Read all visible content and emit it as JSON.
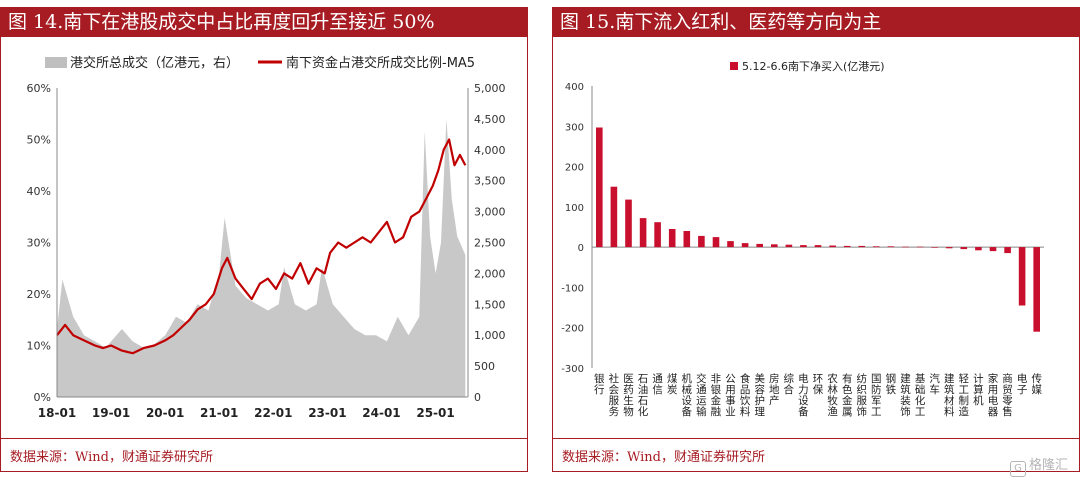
{
  "left": {
    "title": "图 14.南下在港股成交中占比再度回升至接近 50%",
    "source": "数据来源：Wind，财通证券研究所",
    "chart_data": {
      "type": "line",
      "legend": [
        {
          "name": "港交所总成交（亿港元，右）",
          "color": "#bfbfbf",
          "kind": "area"
        },
        {
          "name": "南下资金占港交所成交比例-MA5",
          "color": "#c00000",
          "kind": "line"
        }
      ],
      "x_ticks": [
        "18-01",
        "19-01",
        "20-01",
        "21-01",
        "22-01",
        "23-01",
        "24-01",
        "25-01"
      ],
      "y_left_ticks": [
        "0%",
        "10%",
        "20%",
        "30%",
        "40%",
        "50%",
        "60%"
      ],
      "y_left_range": [
        0,
        60
      ],
      "y_right_ticks": [
        "0",
        "500",
        "1,000",
        "1,500",
        "2,000",
        "2,500",
        "3,000",
        "3,500",
        "4,000",
        "4,500",
        "5,000"
      ],
      "y_right_range": [
        0,
        5000
      ],
      "x_range_years": [
        2018.0,
        2025.6
      ],
      "ratio_series": [
        [
          2018.0,
          12
        ],
        [
          2018.15,
          14
        ],
        [
          2018.3,
          12
        ],
        [
          2018.5,
          11
        ],
        [
          2018.7,
          10
        ],
        [
          2018.85,
          9.5
        ],
        [
          2019.0,
          10
        ],
        [
          2019.2,
          9
        ],
        [
          2019.4,
          8.5
        ],
        [
          2019.6,
          9.5
        ],
        [
          2019.8,
          10
        ],
        [
          2020.0,
          11
        ],
        [
          2020.15,
          12
        ],
        [
          2020.3,
          13.5
        ],
        [
          2020.45,
          15
        ],
        [
          2020.6,
          17
        ],
        [
          2020.75,
          18
        ],
        [
          2020.9,
          20
        ],
        [
          2021.05,
          25
        ],
        [
          2021.15,
          27
        ],
        [
          2021.3,
          23
        ],
        [
          2021.45,
          21
        ],
        [
          2021.6,
          19
        ],
        [
          2021.75,
          22
        ],
        [
          2021.9,
          23
        ],
        [
          2022.05,
          21
        ],
        [
          2022.2,
          24
        ],
        [
          2022.35,
          23
        ],
        [
          2022.5,
          26
        ],
        [
          2022.65,
          22
        ],
        [
          2022.8,
          25
        ],
        [
          2022.95,
          24
        ],
        [
          2023.05,
          28
        ],
        [
          2023.2,
          30
        ],
        [
          2023.35,
          29
        ],
        [
          2023.5,
          30
        ],
        [
          2023.65,
          31
        ],
        [
          2023.8,
          30
        ],
        [
          2023.95,
          32
        ],
        [
          2024.1,
          34
        ],
        [
          2024.25,
          30
        ],
        [
          2024.4,
          31
        ],
        [
          2024.55,
          35
        ],
        [
          2024.7,
          36
        ],
        [
          2024.85,
          39
        ],
        [
          2024.95,
          41
        ],
        [
          2025.05,
          44
        ],
        [
          2025.15,
          48
        ],
        [
          2025.25,
          50
        ],
        [
          2025.35,
          45
        ],
        [
          2025.45,
          47
        ],
        [
          2025.55,
          45
        ]
      ],
      "turnover_series": [
        [
          2018.0,
          1100
        ],
        [
          2018.1,
          1900
        ],
        [
          2018.3,
          1300
        ],
        [
          2018.5,
          1000
        ],
        [
          2018.7,
          900
        ],
        [
          2018.9,
          800
        ],
        [
          2019.0,
          900
        ],
        [
          2019.2,
          1100
        ],
        [
          2019.4,
          900
        ],
        [
          2019.6,
          800
        ],
        [
          2019.8,
          850
        ],
        [
          2020.0,
          1000
        ],
        [
          2020.2,
          1300
        ],
        [
          2020.4,
          1200
        ],
        [
          2020.6,
          1500
        ],
        [
          2020.8,
          1400
        ],
        [
          2021.0,
          2000
        ],
        [
          2021.1,
          2900
        ],
        [
          2021.3,
          1800
        ],
        [
          2021.5,
          1600
        ],
        [
          2021.7,
          1500
        ],
        [
          2021.9,
          1400
        ],
        [
          2022.1,
          1500
        ],
        [
          2022.2,
          2100
        ],
        [
          2022.4,
          1500
        ],
        [
          2022.6,
          1400
        ],
        [
          2022.8,
          1500
        ],
        [
          2022.9,
          2100
        ],
        [
          2023.1,
          1500
        ],
        [
          2023.3,
          1300
        ],
        [
          2023.5,
          1100
        ],
        [
          2023.7,
          1000
        ],
        [
          2023.9,
          1000
        ],
        [
          2024.1,
          900
        ],
        [
          2024.3,
          1300
        ],
        [
          2024.5,
          1000
        ],
        [
          2024.7,
          1300
        ],
        [
          2024.8,
          4300
        ],
        [
          2024.9,
          2600
        ],
        [
          2025.0,
          2000
        ],
        [
          2025.1,
          2500
        ],
        [
          2025.2,
          4500
        ],
        [
          2025.3,
          3200
        ],
        [
          2025.4,
          2600
        ],
        [
          2025.5,
          2400
        ],
        [
          2025.55,
          2300
        ]
      ]
    }
  },
  "right": {
    "title": "图 15.南下流入红利、医药等方向为主",
    "source": "数据来源：Wind，财通证券研究所",
    "chart_data": {
      "type": "bar",
      "legend": "5.12-6.6南下净买入(亿港元)",
      "bar_color": "#c8102e",
      "y_ticks": [
        "400",
        "300",
        "200",
        "100",
        "0",
        "-100",
        "-200",
        "-300"
      ],
      "ylim": [
        -300,
        400
      ],
      "categories": [
        "银行",
        "社会服务",
        "医药生物",
        "石油石化",
        "通信",
        "煤炭",
        "机械设备",
        "交通运输",
        "非银金融",
        "公用事业",
        "食品饮料",
        "美容护理",
        "房地产",
        "综合",
        "电力设备",
        "环保",
        "农林牧渔",
        "有色金属",
        "纺织服饰",
        "国防军工",
        "钢铁",
        "建筑装饰",
        "基础化工",
        "汽车",
        "建筑材料",
        "轻工制造",
        "计算机",
        "家用电器",
        "商贸零售",
        "电子",
        "传媒"
      ],
      "values": [
        297,
        150,
        118,
        72,
        62,
        45,
        40,
        28,
        25,
        15,
        10,
        8,
        7,
        6,
        5,
        5,
        4,
        3,
        3,
        2,
        2,
        1,
        1,
        0,
        -3,
        -5,
        -8,
        -10,
        -15,
        -145,
        -210
      ]
    }
  },
  "watermark": "格隆汇"
}
